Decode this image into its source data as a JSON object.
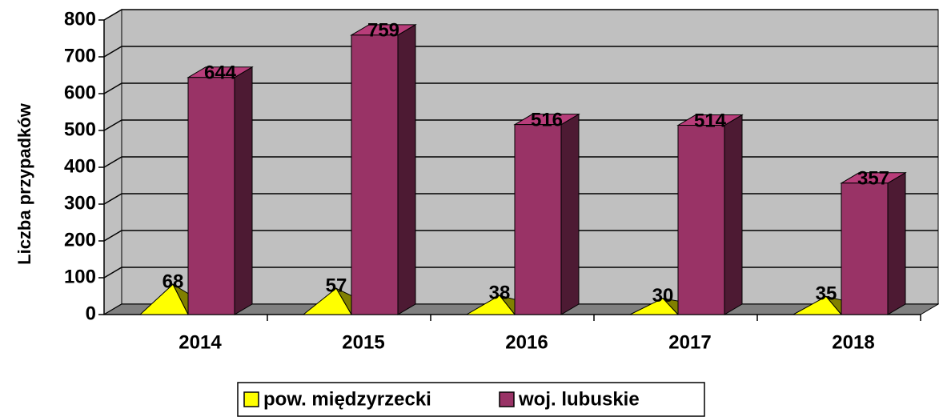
{
  "chart_data": {
    "type": "bar3d",
    "y_axis_label": "Liczba przypadków",
    "categories": [
      "2014",
      "2015",
      "2016",
      "2017",
      "2018"
    ],
    "series": [
      {
        "name": "pow. międzyrzecki",
        "color": "#ffff00",
        "shape": "pyramid",
        "values": [
          68,
          57,
          38,
          30,
          35
        ]
      },
      {
        "name": "woj. lubuskie",
        "color": "#993366",
        "shape": "box",
        "values": [
          644,
          759,
          516,
          514,
          357
        ]
      }
    ],
    "ylim": [
      0,
      800
    ],
    "yticks": [
      0,
      100,
      200,
      300,
      400,
      500,
      600,
      700,
      800
    ],
    "grid": true
  }
}
